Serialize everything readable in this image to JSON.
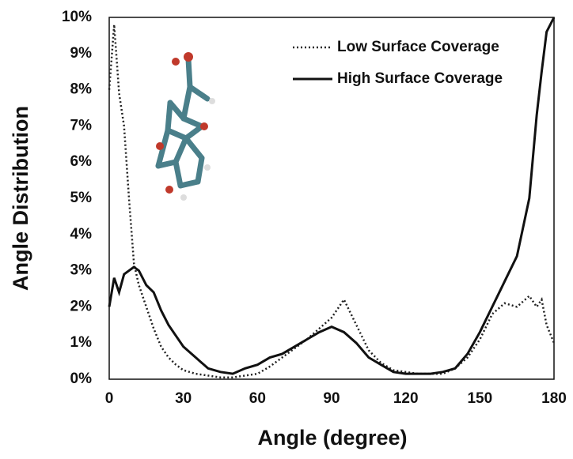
{
  "chart_data": {
    "type": "line",
    "xlabel": "Angle (degree)",
    "ylabel": "Angle Distribution",
    "x": [
      0,
      2,
      4,
      6,
      8,
      10,
      12,
      15,
      18,
      21,
      24,
      27,
      30,
      35,
      40,
      45,
      50,
      55,
      60,
      65,
      70,
      75,
      80,
      85,
      90,
      95,
      100,
      105,
      110,
      115,
      120,
      125,
      130,
      135,
      140,
      145,
      150,
      155,
      160,
      165,
      170,
      173,
      175,
      177,
      180
    ],
    "series": [
      {
        "name": "Low Surface Coverage",
        "color": "#222222",
        "style": "dotted",
        "values": [
          8.0,
          9.8,
          7.9,
          7.0,
          5.0,
          3.2,
          2.6,
          2.0,
          1.4,
          0.9,
          0.6,
          0.4,
          0.25,
          0.15,
          0.1,
          0.05,
          0.05,
          0.1,
          0.15,
          0.35,
          0.6,
          0.85,
          1.1,
          1.4,
          1.7,
          2.2,
          1.5,
          0.8,
          0.45,
          0.25,
          0.2,
          0.15,
          0.15,
          0.15,
          0.3,
          0.6,
          1.1,
          1.8,
          2.1,
          2.0,
          2.3,
          2.0,
          2.2,
          1.5,
          1.0
        ]
      },
      {
        "name": "High Surface Coverage",
        "color": "#111111",
        "style": "solid",
        "values": [
          2.0,
          2.8,
          2.4,
          2.9,
          3.0,
          3.1,
          3.0,
          2.6,
          2.4,
          1.9,
          1.5,
          1.2,
          0.9,
          0.6,
          0.3,
          0.2,
          0.15,
          0.3,
          0.4,
          0.6,
          0.7,
          0.9,
          1.1,
          1.3,
          1.45,
          1.3,
          1.0,
          0.6,
          0.4,
          0.2,
          0.15,
          0.15,
          0.15,
          0.2,
          0.3,
          0.7,
          1.3,
          2.0,
          2.7,
          3.4,
          5.0,
          7.3,
          8.5,
          9.6,
          10
        ]
      }
    ],
    "xlim": [
      0,
      180
    ],
    "xticks": [
      0,
      30,
      60,
      90,
      120,
      150,
      180
    ],
    "ylim": [
      0,
      10
    ],
    "yticks": [
      {
        "value": 0,
        "label": "0%"
      },
      {
        "value": 1,
        "label": "1%"
      },
      {
        "value": 2,
        "label": "2%"
      },
      {
        "value": 3,
        "label": "3%"
      },
      {
        "value": 4,
        "label": "4%"
      },
      {
        "value": 5,
        "label": "5%"
      },
      {
        "value": 6,
        "label": "6%"
      },
      {
        "value": 7,
        "label": "7%"
      },
      {
        "value": 8,
        "label": "8%"
      },
      {
        "value": 9,
        "label": "9%"
      },
      {
        "value": 10,
        "label": "10%"
      }
    ],
    "grid": false,
    "legend": "upper right"
  }
}
